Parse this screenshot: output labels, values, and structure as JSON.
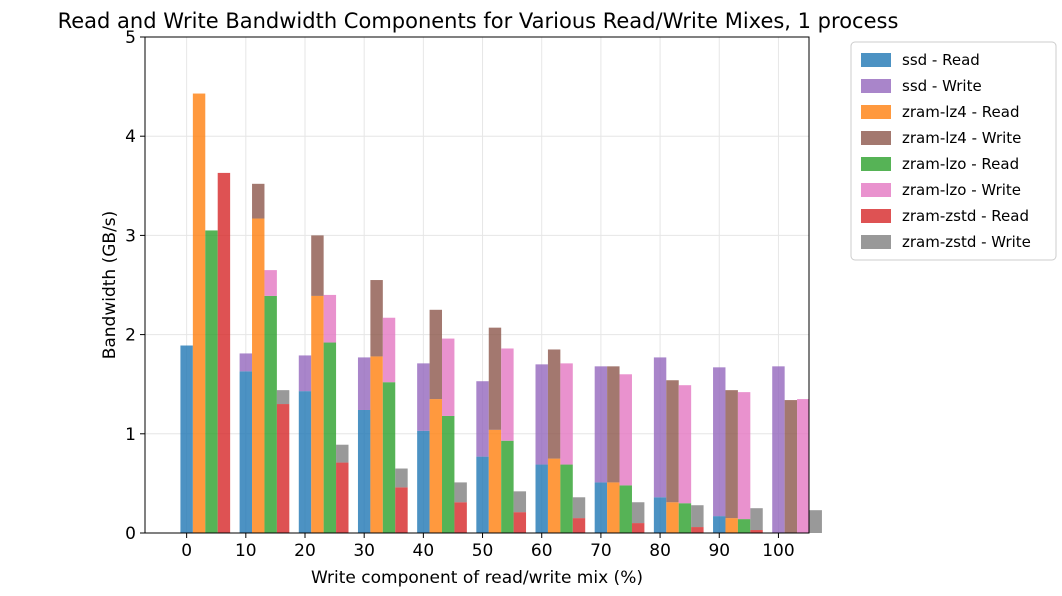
{
  "chart_data": {
    "type": "bar",
    "stacked_pairs": true,
    "title": "Read and Write Bandwidth Components for Various Read/Write Mixes, 1 process",
    "xlabel": "Write component of read/write mix (%)",
    "ylabel": "Bandwidth (GB/s)",
    "ylim": [
      0,
      5
    ],
    "yticks": [
      0,
      1,
      2,
      3,
      4,
      5
    ],
    "grid": true,
    "legend_position": "outside-top-right",
    "categories": [
      "0",
      "10",
      "20",
      "30",
      "40",
      "50",
      "60",
      "70",
      "80",
      "90",
      "100"
    ],
    "devices": [
      {
        "name": "ssd",
        "read_label": "ssd - Read",
        "write_label": "ssd - Write",
        "read_color": "#1f77b4",
        "write_color": "#9467bd",
        "read": [
          1.89,
          1.63,
          1.43,
          1.24,
          1.03,
          0.77,
          0.69,
          0.51,
          0.36,
          0.17,
          0.0
        ],
        "write": [
          0.0,
          0.18,
          0.36,
          0.53,
          0.68,
          0.76,
          1.01,
          1.17,
          1.41,
          1.5,
          1.68
        ]
      },
      {
        "name": "zram-lz4",
        "read_label": "zram-lz4 - Read",
        "write_label": "zram-lz4 - Write",
        "read_color": "#ff7f0e",
        "write_color": "#8c564b",
        "read": [
          4.43,
          3.17,
          2.39,
          1.78,
          1.35,
          1.04,
          0.75,
          0.51,
          0.31,
          0.15,
          0.0
        ],
        "write": [
          0.0,
          0.35,
          0.61,
          0.77,
          0.9,
          1.03,
          1.1,
          1.17,
          1.23,
          1.29,
          1.34
        ]
      },
      {
        "name": "zram-lzo",
        "read_label": "zram-lzo - Read",
        "write_label": "zram-lzo - Write",
        "read_color": "#2ca02c",
        "write_color": "#e377c2",
        "read": [
          3.05,
          2.39,
          1.92,
          1.52,
          1.18,
          0.93,
          0.69,
          0.48,
          0.3,
          0.14,
          0.0
        ],
        "write": [
          0.0,
          0.26,
          0.48,
          0.65,
          0.78,
          0.93,
          1.02,
          1.12,
          1.19,
          1.28,
          1.35
        ]
      },
      {
        "name": "zram-zstd",
        "read_label": "zram-zstd - Read",
        "write_label": "zram-zstd - Write",
        "read_color": "#d62728",
        "write_color": "#7f7f7f",
        "read": [
          3.63,
          1.3,
          0.71,
          0.46,
          0.31,
          0.21,
          0.15,
          0.1,
          0.06,
          0.03,
          0.0
        ],
        "write": [
          0.0,
          0.14,
          0.18,
          0.19,
          0.2,
          0.21,
          0.21,
          0.21,
          0.22,
          0.22,
          0.23
        ]
      }
    ]
  }
}
